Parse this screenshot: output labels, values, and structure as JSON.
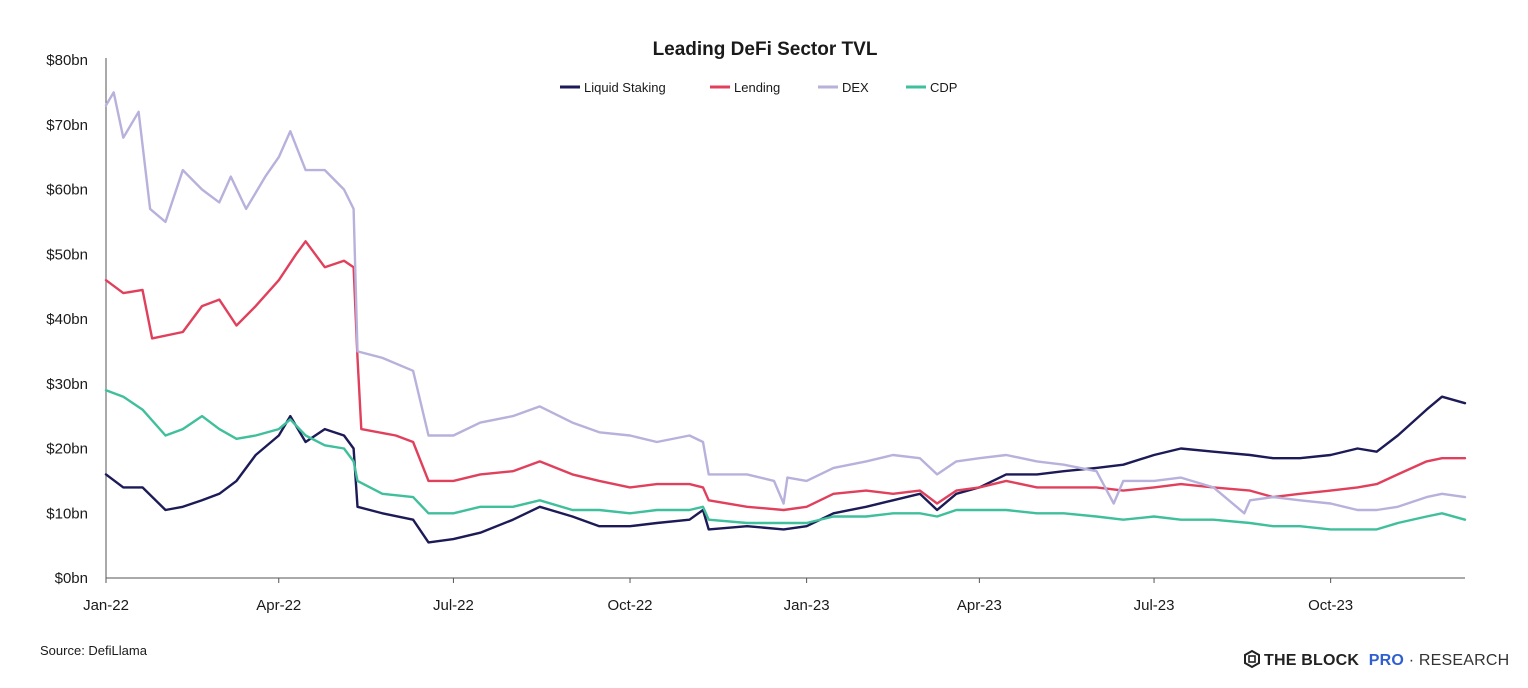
{
  "chart_data": {
    "type": "line",
    "title": "Leading DeFi Sector TVL",
    "xlabel": "",
    "ylabel": "",
    "x_range": [
      "2022-01-01",
      "2023-12-10"
    ],
    "ylim": [
      0,
      80
    ],
    "y_ticks": [
      0,
      10,
      20,
      30,
      40,
      50,
      60,
      70,
      80
    ],
    "y_tick_labels": [
      "$0bn",
      "$10bn",
      "$20bn",
      "$30bn",
      "$40bn",
      "$50bn",
      "$60bn",
      "$70bn",
      "$80bn"
    ],
    "x_ticks": [
      "2022-01-01",
      "2022-04-01",
      "2022-07-01",
      "2022-10-01",
      "2023-01-01",
      "2023-04-01",
      "2023-07-01",
      "2023-10-01"
    ],
    "x_tick_labels": [
      "Jan-22",
      "Apr-22",
      "Jul-22",
      "Oct-22",
      "Jan-23",
      "Apr-23",
      "Jul-23",
      "Oct-23"
    ],
    "grid": false,
    "legend_position": "top-center",
    "series": [
      {
        "name": "Liquid Staking",
        "color": "#1c1a57",
        "points": [
          [
            "2022-01-01",
            16
          ],
          [
            "2022-01-10",
            14
          ],
          [
            "2022-01-20",
            14
          ],
          [
            "2022-02-01",
            10.5
          ],
          [
            "2022-02-10",
            11
          ],
          [
            "2022-02-20",
            12
          ],
          [
            "2022-03-01",
            13
          ],
          [
            "2022-03-10",
            15
          ],
          [
            "2022-03-20",
            19
          ],
          [
            "2022-04-01",
            22
          ],
          [
            "2022-04-07",
            25
          ],
          [
            "2022-04-15",
            21
          ],
          [
            "2022-04-25",
            23
          ],
          [
            "2022-05-05",
            22
          ],
          [
            "2022-05-10",
            20
          ],
          [
            "2022-05-12",
            11
          ],
          [
            "2022-05-25",
            10
          ],
          [
            "2022-06-10",
            9
          ],
          [
            "2022-06-18",
            5.5
          ],
          [
            "2022-07-01",
            6
          ],
          [
            "2022-07-15",
            7
          ],
          [
            "2022-08-01",
            9
          ],
          [
            "2022-08-15",
            11
          ],
          [
            "2022-09-01",
            9.5
          ],
          [
            "2022-09-15",
            8
          ],
          [
            "2022-10-01",
            8
          ],
          [
            "2022-10-15",
            8.5
          ],
          [
            "2022-11-01",
            9
          ],
          [
            "2022-11-08",
            10.5
          ],
          [
            "2022-11-11",
            7.5
          ],
          [
            "2022-12-01",
            8
          ],
          [
            "2022-12-20",
            7.5
          ],
          [
            "2023-01-01",
            8
          ],
          [
            "2023-01-15",
            10
          ],
          [
            "2023-02-01",
            11
          ],
          [
            "2023-02-15",
            12
          ],
          [
            "2023-03-01",
            13
          ],
          [
            "2023-03-10",
            10.5
          ],
          [
            "2023-03-20",
            13
          ],
          [
            "2023-04-01",
            14
          ],
          [
            "2023-04-15",
            16
          ],
          [
            "2023-05-01",
            16
          ],
          [
            "2023-05-15",
            16.5
          ],
          [
            "2023-06-01",
            17
          ],
          [
            "2023-06-15",
            17.5
          ],
          [
            "2023-07-01",
            19
          ],
          [
            "2023-07-15",
            20
          ],
          [
            "2023-08-01",
            19.5
          ],
          [
            "2023-08-20",
            19
          ],
          [
            "2023-09-01",
            18.5
          ],
          [
            "2023-09-15",
            18.5
          ],
          [
            "2023-10-01",
            19
          ],
          [
            "2023-10-15",
            20
          ],
          [
            "2023-10-25",
            19.5
          ],
          [
            "2023-11-05",
            22
          ],
          [
            "2023-11-20",
            26
          ],
          [
            "2023-11-28",
            28
          ],
          [
            "2023-12-10",
            27
          ]
        ]
      },
      {
        "name": "Lending",
        "color": "#e0405c",
        "points": [
          [
            "2022-01-01",
            46
          ],
          [
            "2022-01-10",
            44
          ],
          [
            "2022-01-20",
            44.5
          ],
          [
            "2022-01-25",
            37
          ],
          [
            "2022-02-10",
            38
          ],
          [
            "2022-02-20",
            42
          ],
          [
            "2022-03-01",
            43
          ],
          [
            "2022-03-10",
            39
          ],
          [
            "2022-03-20",
            42
          ],
          [
            "2022-04-01",
            46
          ],
          [
            "2022-04-10",
            50
          ],
          [
            "2022-04-15",
            52
          ],
          [
            "2022-04-25",
            48
          ],
          [
            "2022-05-05",
            49
          ],
          [
            "2022-05-10",
            48
          ],
          [
            "2022-05-12",
            34
          ],
          [
            "2022-05-14",
            23
          ],
          [
            "2022-06-01",
            22
          ],
          [
            "2022-06-10",
            21
          ],
          [
            "2022-06-18",
            15
          ],
          [
            "2022-07-01",
            15
          ],
          [
            "2022-07-15",
            16
          ],
          [
            "2022-08-01",
            16.5
          ],
          [
            "2022-08-15",
            18
          ],
          [
            "2022-09-01",
            16
          ],
          [
            "2022-09-15",
            15
          ],
          [
            "2022-10-01",
            14
          ],
          [
            "2022-10-15",
            14.5
          ],
          [
            "2022-11-01",
            14.5
          ],
          [
            "2022-11-08",
            14
          ],
          [
            "2022-11-11",
            12
          ],
          [
            "2022-12-01",
            11
          ],
          [
            "2022-12-20",
            10.5
          ],
          [
            "2023-01-01",
            11
          ],
          [
            "2023-01-15",
            13
          ],
          [
            "2023-02-01",
            13.5
          ],
          [
            "2023-02-15",
            13
          ],
          [
            "2023-03-01",
            13.5
          ],
          [
            "2023-03-10",
            11.5
          ],
          [
            "2023-03-20",
            13.5
          ],
          [
            "2023-04-01",
            14
          ],
          [
            "2023-04-15",
            15
          ],
          [
            "2023-05-01",
            14
          ],
          [
            "2023-05-15",
            14
          ],
          [
            "2023-06-01",
            14
          ],
          [
            "2023-06-15",
            13.5
          ],
          [
            "2023-07-01",
            14
          ],
          [
            "2023-07-15",
            14.5
          ],
          [
            "2023-08-01",
            14
          ],
          [
            "2023-08-20",
            13.5
          ],
          [
            "2023-09-01",
            12.5
          ],
          [
            "2023-09-15",
            13
          ],
          [
            "2023-10-01",
            13.5
          ],
          [
            "2023-10-15",
            14
          ],
          [
            "2023-10-25",
            14.5
          ],
          [
            "2023-11-05",
            16
          ],
          [
            "2023-11-20",
            18
          ],
          [
            "2023-11-28",
            18.5
          ],
          [
            "2023-12-10",
            18.5
          ]
        ]
      },
      {
        "name": "DEX",
        "color": "#b7b1dc",
        "points": [
          [
            "2022-01-01",
            73
          ],
          [
            "2022-01-05",
            75
          ],
          [
            "2022-01-10",
            68
          ],
          [
            "2022-01-18",
            72
          ],
          [
            "2022-01-24",
            57
          ],
          [
            "2022-02-01",
            55
          ],
          [
            "2022-02-10",
            63
          ],
          [
            "2022-02-20",
            60
          ],
          [
            "2022-03-01",
            58
          ],
          [
            "2022-03-07",
            62
          ],
          [
            "2022-03-15",
            57
          ],
          [
            "2022-03-25",
            62
          ],
          [
            "2022-04-01",
            65
          ],
          [
            "2022-04-07",
            69
          ],
          [
            "2022-04-15",
            63
          ],
          [
            "2022-04-25",
            63
          ],
          [
            "2022-05-05",
            60
          ],
          [
            "2022-05-10",
            57
          ],
          [
            "2022-05-12",
            35
          ],
          [
            "2022-05-25",
            34
          ],
          [
            "2022-06-10",
            32
          ],
          [
            "2022-06-18",
            22
          ],
          [
            "2022-07-01",
            22
          ],
          [
            "2022-07-15",
            24
          ],
          [
            "2022-08-01",
            25
          ],
          [
            "2022-08-15",
            26.5
          ],
          [
            "2022-09-01",
            24
          ],
          [
            "2022-09-15",
            22.5
          ],
          [
            "2022-10-01",
            22
          ],
          [
            "2022-10-15",
            21
          ],
          [
            "2022-11-01",
            22
          ],
          [
            "2022-11-08",
            21
          ],
          [
            "2022-11-11",
            16
          ],
          [
            "2022-12-01",
            16
          ],
          [
            "2022-12-15",
            15
          ],
          [
            "2022-12-20",
            11.5
          ],
          [
            "2022-12-22",
            15.5
          ],
          [
            "2023-01-01",
            15
          ],
          [
            "2023-01-15",
            17
          ],
          [
            "2023-02-01",
            18
          ],
          [
            "2023-02-15",
            19
          ],
          [
            "2023-03-01",
            18.5
          ],
          [
            "2023-03-10",
            16
          ],
          [
            "2023-03-20",
            18
          ],
          [
            "2023-04-01",
            18.5
          ],
          [
            "2023-04-15",
            19
          ],
          [
            "2023-05-01",
            18
          ],
          [
            "2023-05-15",
            17.5
          ],
          [
            "2023-06-01",
            16.5
          ],
          [
            "2023-06-10",
            11.5
          ],
          [
            "2023-06-15",
            15
          ],
          [
            "2023-07-01",
            15
          ],
          [
            "2023-07-15",
            15.5
          ],
          [
            "2023-08-01",
            14
          ],
          [
            "2023-08-17",
            10
          ],
          [
            "2023-08-20",
            12
          ],
          [
            "2023-09-01",
            12.5
          ],
          [
            "2023-09-15",
            12
          ],
          [
            "2023-10-01",
            11.5
          ],
          [
            "2023-10-15",
            10.5
          ],
          [
            "2023-10-25",
            10.5
          ],
          [
            "2023-11-05",
            11
          ],
          [
            "2023-11-20",
            12.5
          ],
          [
            "2023-11-28",
            13
          ],
          [
            "2023-12-10",
            12.5
          ]
        ]
      },
      {
        "name": "CDP",
        "color": "#3fbf9b",
        "points": [
          [
            "2022-01-01",
            29
          ],
          [
            "2022-01-10",
            28
          ],
          [
            "2022-01-20",
            26
          ],
          [
            "2022-02-01",
            22
          ],
          [
            "2022-02-10",
            23
          ],
          [
            "2022-02-20",
            25
          ],
          [
            "2022-03-01",
            23
          ],
          [
            "2022-03-10",
            21.5
          ],
          [
            "2022-03-20",
            22
          ],
          [
            "2022-04-01",
            23
          ],
          [
            "2022-04-07",
            24.5
          ],
          [
            "2022-04-15",
            22
          ],
          [
            "2022-04-25",
            20.5
          ],
          [
            "2022-05-05",
            20
          ],
          [
            "2022-05-10",
            18
          ],
          [
            "2022-05-12",
            15
          ],
          [
            "2022-05-25",
            13
          ],
          [
            "2022-06-10",
            12.5
          ],
          [
            "2022-06-18",
            10
          ],
          [
            "2022-07-01",
            10
          ],
          [
            "2022-07-15",
            11
          ],
          [
            "2022-08-01",
            11
          ],
          [
            "2022-08-15",
            12
          ],
          [
            "2022-09-01",
            10.5
          ],
          [
            "2022-09-15",
            10.5
          ],
          [
            "2022-10-01",
            10
          ],
          [
            "2022-10-15",
            10.5
          ],
          [
            "2022-11-01",
            10.5
          ],
          [
            "2022-11-08",
            11
          ],
          [
            "2022-11-11",
            9
          ],
          [
            "2022-12-01",
            8.5
          ],
          [
            "2022-12-20",
            8.5
          ],
          [
            "2023-01-01",
            8.5
          ],
          [
            "2023-01-15",
            9.5
          ],
          [
            "2023-02-01",
            9.5
          ],
          [
            "2023-02-15",
            10
          ],
          [
            "2023-03-01",
            10
          ],
          [
            "2023-03-10",
            9.5
          ],
          [
            "2023-03-20",
            10.5
          ],
          [
            "2023-04-01",
            10.5
          ],
          [
            "2023-04-15",
            10.5
          ],
          [
            "2023-05-01",
            10
          ],
          [
            "2023-05-15",
            10
          ],
          [
            "2023-06-01",
            9.5
          ],
          [
            "2023-06-15",
            9
          ],
          [
            "2023-07-01",
            9.5
          ],
          [
            "2023-07-15",
            9
          ],
          [
            "2023-08-01",
            9
          ],
          [
            "2023-08-20",
            8.5
          ],
          [
            "2023-09-01",
            8
          ],
          [
            "2023-09-15",
            8
          ],
          [
            "2023-10-01",
            7.5
          ],
          [
            "2023-10-15",
            7.5
          ],
          [
            "2023-10-25",
            7.5
          ],
          [
            "2023-11-05",
            8.5
          ],
          [
            "2023-11-20",
            9.5
          ],
          [
            "2023-11-28",
            10
          ],
          [
            "2023-12-10",
            9
          ]
        ]
      }
    ]
  },
  "source_text": "Source: DefiLlama",
  "brand": {
    "name": "THE BLOCK",
    "pro": "PRO",
    "separator": " · ",
    "research": "RESEARCH"
  }
}
